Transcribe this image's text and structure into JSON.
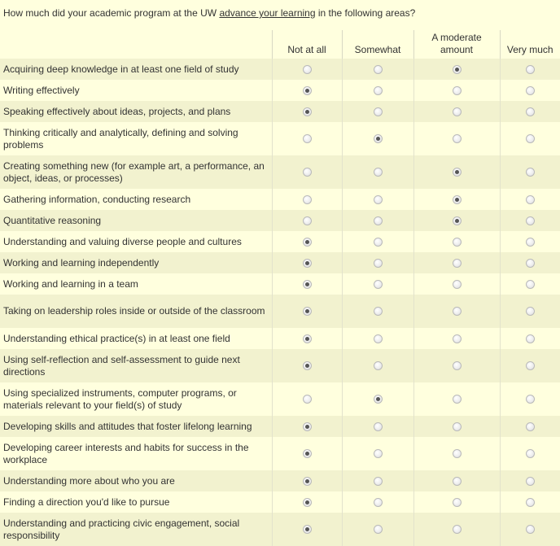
{
  "question": {
    "prefix": "How much did your academic program at the UW ",
    "link": "advance your learning",
    "suffix": " in the following areas?"
  },
  "options": [
    "Not at all",
    "Somewhat",
    "A moderate amount",
    "Very much"
  ],
  "rows": [
    {
      "label": "Acquiring deep knowledge in at least one field of study",
      "selected": 2
    },
    {
      "label": "Writing effectively",
      "selected": 0
    },
    {
      "label": "Speaking effectively about ideas, projects, and plans",
      "selected": 0
    },
    {
      "label": "Thinking critically and analytically, defining and solving problems",
      "selected": 1
    },
    {
      "label": "Creating something new (for example art, a performance, an object, ideas, or processes)",
      "selected": 2
    },
    {
      "label": "Gathering information, conducting research",
      "selected": 2
    },
    {
      "label": "Quantitative reasoning",
      "selected": 2
    },
    {
      "label": "Understanding and valuing diverse people and cultures",
      "selected": 0
    },
    {
      "label": "Working and learning independently",
      "selected": 0
    },
    {
      "label": "Working and learning in a team",
      "selected": 0
    },
    {
      "label": "Taking on leadership roles inside or outside of the classroom",
      "selected": 0
    },
    {
      "label": "Understanding ethical practice(s) in at least one field",
      "selected": 0
    },
    {
      "label": "Using self-reflection and self-assessment to guide next directions",
      "selected": 0
    },
    {
      "label": "Using specialized instruments, computer programs, or materials relevant to your field(s) of study",
      "selected": 1
    },
    {
      "label": "Developing skills and attitudes that foster lifelong learning",
      "selected": 0
    },
    {
      "label": "Developing career interests and habits for success in the workplace",
      "selected": 0
    },
    {
      "label": "Understanding more about who you are",
      "selected": 0
    },
    {
      "label": "Finding a direction you'd like to pursue",
      "selected": 0
    },
    {
      "label": "Understanding and practicing civic engagement, social responsibility",
      "selected": 0
    }
  ]
}
